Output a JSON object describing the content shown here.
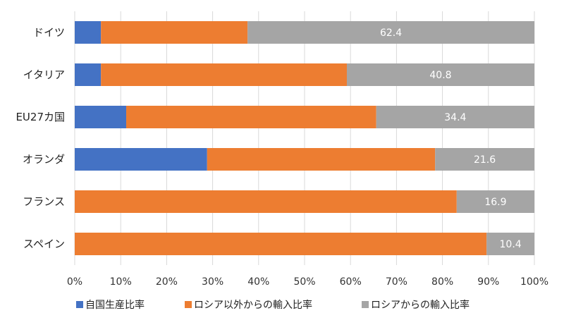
{
  "chart_data": {
    "type": "bar",
    "orientation": "horizontal",
    "stacked": "percent",
    "title": "",
    "xlabel": "",
    "ylabel": "",
    "xlim": [
      0,
      100
    ],
    "grid": true,
    "legend_position": "bottom",
    "categories": [
      "ドイツ",
      "イタリア",
      "EU27カ国",
      "オランダ",
      "フランス",
      "スペイン"
    ],
    "x_ticks": [
      "0%",
      "10%",
      "20%",
      "30%",
      "40%",
      "50%",
      "60%",
      "70%",
      "80%",
      "90%",
      "100%"
    ],
    "series": [
      {
        "name": "自国生産比率",
        "color": "#4472c4",
        "values": [
          5.7,
          5.7,
          11.2,
          28.8,
          0,
          0
        ]
      },
      {
        "name": "ロシア以外からの輸入比率",
        "color": "#ed7d31",
        "values": [
          31.9,
          53.5,
          54.4,
          49.6,
          83.1,
          89.6
        ]
      },
      {
        "name": "ロシアからの輸入比率",
        "color": "#a5a5a5",
        "values": [
          62.4,
          40.8,
          34.4,
          21.6,
          16.9,
          10.4
        ],
        "data_labels": [
          "62.4",
          "40.8",
          "34.4",
          "21.6",
          "16.9",
          "10.4"
        ]
      }
    ]
  }
}
